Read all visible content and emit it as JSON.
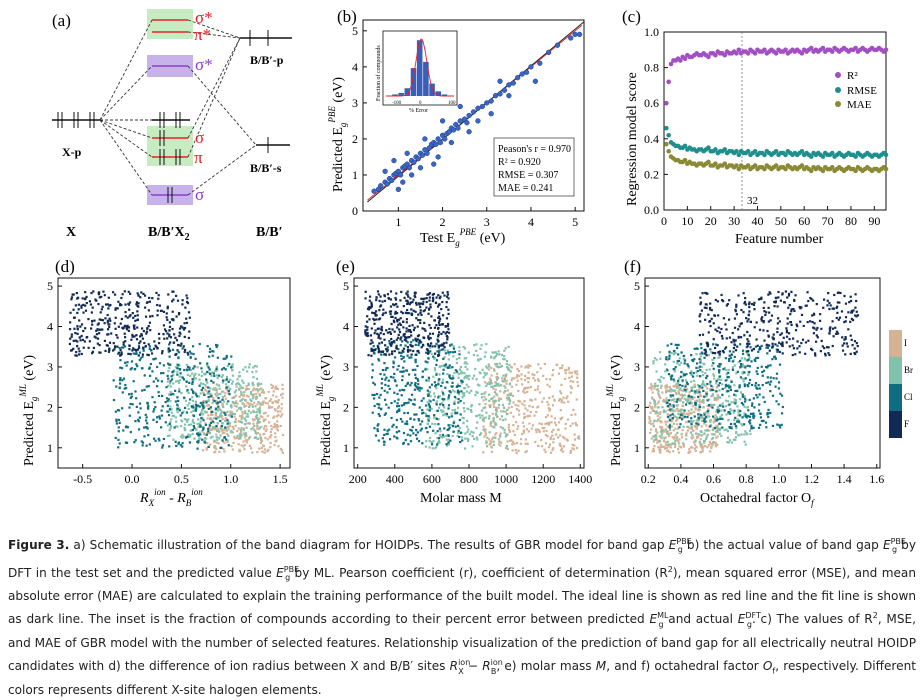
{
  "panels": {
    "a": {
      "label": "(a)",
      "col_x": "X",
      "col_mid": "B/B′X",
      "col_mid_sub": "2",
      "col_right": "B/B′",
      "left_level": "X-p",
      "right_top_level": "B/B′-p",
      "right_bottom_level": "B/B′-s",
      "sigma_star": "σ*",
      "pi_star": "π*",
      "sigma_star2": "σ*",
      "sigma": "σ",
      "pi": "π",
      "sigma_bottom": "σ",
      "colors": {
        "red": "#e8202a",
        "purple": "#8a3fd0",
        "green_box": "#c8ecc2",
        "purple_box": "#c7b2ea"
      }
    },
    "b": {
      "label": "(b)",
      "inset_ylabel": "Fraction of compounds",
      "inset_xlabel": "% Error",
      "stats": [
        "Peason's r = 0.970",
        "R² = 0.920",
        "RMSE = 0.307",
        "MAE = 0.241"
      ],
      "xlabel_main": "Test E",
      "xlabel_unit": " (eV)",
      "ylabel_main": "Predicted E",
      "ylabel_unit": " (eV)",
      "sup": "PBE",
      "sub": "g"
    },
    "c": {
      "label": "(c)",
      "ylabel": "Regression model score",
      "xlabel": "Feature number",
      "marker_label": "32",
      "legend": [
        "R²",
        "RMSE",
        "MAE"
      ]
    },
    "d": {
      "label": "(d)",
      "xlabel": "R",
      "xlabel_sub1": "X",
      "xlabel_sup1": "ion",
      "xlabel_mid": " - R",
      "xlabel_sub2": "B",
      "xlabel_sup2": "ion"
    },
    "e": {
      "label": "(e)",
      "xlabel": "Molar mass M"
    },
    "f": {
      "label": "(f)",
      "xlabel": "Octahedral factor O",
      "xlabel_sub": "f"
    },
    "scatter_ylabel": "Predicted E",
    "scatter_ylabel_sup": "ML",
    "scatter_ylabel_sub": "g",
    "scatter_ylabel_unit": " (eV)",
    "halogen_legend": [
      "I",
      "Br",
      "Cl",
      "F"
    ]
  },
  "colors": {
    "series_blue": "#3a66c4",
    "r2": "#a24fc4",
    "rmse": "#1e8f8c",
    "mae": "#8a8a35",
    "F": "#102a55",
    "Cl": "#0e6d80",
    "Br": "#82c2aa",
    "I": "#d5b294"
  },
  "chart_data": [
    {
      "type": "scatter",
      "panel": "b",
      "xlabel": "Test E_g^PBE (eV)",
      "ylabel": "Predicted E_g^PBE (eV)",
      "xlim": [
        0.2,
        5.2
      ],
      "ylim": [
        0,
        5.3
      ],
      "xticks": [
        1,
        2,
        3,
        4,
        5
      ],
      "yticks": [
        0,
        1,
        2,
        3,
        4,
        5
      ],
      "lines": [
        "ideal (red)",
        "fit (dark)"
      ],
      "x": [
        0.45,
        0.55,
        0.6,
        0.7,
        0.75,
        0.8,
        0.85,
        0.9,
        0.95,
        1.0,
        1.05,
        1.1,
        1.15,
        1.2,
        1.25,
        1.3,
        1.35,
        1.4,
        1.45,
        1.5,
        1.55,
        1.6,
        1.65,
        1.7,
        1.75,
        1.8,
        1.85,
        1.9,
        1.95,
        2.0,
        2.05,
        2.1,
        2.15,
        2.2,
        2.25,
        2.3,
        2.35,
        2.4,
        2.5,
        2.55,
        2.6,
        2.7,
        2.8,
        2.9,
        3.0,
        3.1,
        3.2,
        3.3,
        3.4,
        3.5,
        3.6,
        3.7,
        3.8,
        3.9,
        4.0,
        4.2,
        4.4,
        4.6,
        4.9,
        5.0,
        5.1,
        0.9,
        1.1,
        1.3,
        1.6,
        1.9,
        2.2,
        2.6,
        3.1,
        3.5,
        4.1,
        1.2,
        0.7,
        1.5,
        2.0,
        2.8,
        3.3,
        1.0,
        1.8,
        2.4
      ],
      "y": [
        0.55,
        0.6,
        0.7,
        0.8,
        0.75,
        0.9,
        0.85,
        1.0,
        1.05,
        1.1,
        1.0,
        1.2,
        1.25,
        1.3,
        1.2,
        1.4,
        1.35,
        1.5,
        1.45,
        1.6,
        1.55,
        1.7,
        1.6,
        1.75,
        1.85,
        1.9,
        1.85,
        2.0,
        1.9,
        2.1,
        2.0,
        2.15,
        2.2,
        2.3,
        2.25,
        2.4,
        2.3,
        2.5,
        2.55,
        2.45,
        2.65,
        2.75,
        2.85,
        2.9,
        3.0,
        3.05,
        3.2,
        3.25,
        3.35,
        3.5,
        3.55,
        3.7,
        3.8,
        3.85,
        4.0,
        4.1,
        4.4,
        4.6,
        4.8,
        4.9,
        4.9,
        1.4,
        0.8,
        1.0,
        2.0,
        1.5,
        1.9,
        2.2,
        2.7,
        3.2,
        3.6,
        1.6,
        1.1,
        1.2,
        2.5,
        2.5,
        3.6,
        0.6,
        1.3,
        2.9
      ]
    },
    {
      "type": "bar",
      "panel": "b-inset",
      "xlabel": "% Error",
      "ylabel": "Fraction of compounds",
      "categories": [
        "-100",
        "-80",
        "-60",
        "-40",
        "-20",
        "0",
        "20",
        "40",
        "60",
        "80",
        "100"
      ],
      "values": [
        0.0,
        0.01,
        0.02,
        0.05,
        0.18,
        0.36,
        0.22,
        0.08,
        0.03,
        0.01,
        0.0
      ]
    },
    {
      "type": "scatter",
      "panel": "c",
      "xlabel": "Feature number",
      "ylabel": "Regression model score",
      "xlim": [
        0,
        95
      ],
      "ylim": [
        0.0,
        1.0
      ],
      "xticks": [
        0,
        10,
        20,
        30,
        40,
        50,
        60,
        70,
        80,
        90
      ],
      "yticks": [
        0.0,
        0.2,
        0.4,
        0.6,
        0.8,
        1.0
      ],
      "series": [
        {
          "name": "R²",
          "values": [
            0.6,
            0.72,
            0.82,
            0.84,
            0.84,
            0.85,
            0.84,
            0.86,
            0.85,
            0.87,
            0.86,
            0.86,
            0.87,
            0.88,
            0.87,
            0.87,
            0.88,
            0.87,
            0.86,
            0.88,
            0.88,
            0.87,
            0.89,
            0.88,
            0.88,
            0.87,
            0.89,
            0.88,
            0.88,
            0.89,
            0.88,
            0.9,
            0.88,
            0.89,
            0.89,
            0.88,
            0.9,
            0.89,
            0.88,
            0.9,
            0.89,
            0.89,
            0.9,
            0.88,
            0.89,
            0.9,
            0.89,
            0.88,
            0.9,
            0.89,
            0.89,
            0.9,
            0.88,
            0.89,
            0.9,
            0.89,
            0.9,
            0.89,
            0.88,
            0.9,
            0.89,
            0.9,
            0.91,
            0.89,
            0.9,
            0.89,
            0.9,
            0.91,
            0.89,
            0.9,
            0.9,
            0.89,
            0.91,
            0.9,
            0.89,
            0.9,
            0.91,
            0.9,
            0.89,
            0.9,
            0.9,
            0.91,
            0.89,
            0.9,
            0.91,
            0.9,
            0.89,
            0.9,
            0.91,
            0.9,
            0.9,
            0.91,
            0.9,
            0.89,
            0.9
          ]
        },
        {
          "name": "RMSE",
          "values": [
            0.46,
            0.42,
            0.38,
            0.37,
            0.36,
            0.36,
            0.35,
            0.35,
            0.36,
            0.34,
            0.35,
            0.34,
            0.34,
            0.33,
            0.34,
            0.34,
            0.33,
            0.34,
            0.35,
            0.33,
            0.33,
            0.34,
            0.32,
            0.33,
            0.33,
            0.34,
            0.32,
            0.33,
            0.33,
            0.32,
            0.33,
            0.31,
            0.33,
            0.32,
            0.32,
            0.33,
            0.31,
            0.32,
            0.33,
            0.31,
            0.32,
            0.32,
            0.31,
            0.33,
            0.32,
            0.31,
            0.32,
            0.33,
            0.31,
            0.32,
            0.32,
            0.31,
            0.33,
            0.32,
            0.31,
            0.32,
            0.31,
            0.32,
            0.33,
            0.31,
            0.32,
            0.31,
            0.3,
            0.32,
            0.31,
            0.32,
            0.31,
            0.3,
            0.32,
            0.31,
            0.31,
            0.32,
            0.3,
            0.31,
            0.32,
            0.31,
            0.3,
            0.31,
            0.32,
            0.31,
            0.31,
            0.3,
            0.32,
            0.31,
            0.3,
            0.31,
            0.32,
            0.31,
            0.3,
            0.31,
            0.31,
            0.3,
            0.31,
            0.32,
            0.31
          ]
        },
        {
          "name": "MAE",
          "values": [
            0.37,
            0.33,
            0.3,
            0.29,
            0.28,
            0.28,
            0.27,
            0.27,
            0.28,
            0.26,
            0.27,
            0.26,
            0.26,
            0.25,
            0.26,
            0.26,
            0.25,
            0.26,
            0.27,
            0.25,
            0.25,
            0.26,
            0.24,
            0.25,
            0.25,
            0.26,
            0.24,
            0.25,
            0.25,
            0.24,
            0.25,
            0.23,
            0.25,
            0.24,
            0.24,
            0.25,
            0.23,
            0.24,
            0.25,
            0.23,
            0.24,
            0.24,
            0.23,
            0.25,
            0.24,
            0.23,
            0.24,
            0.25,
            0.23,
            0.24,
            0.24,
            0.23,
            0.25,
            0.24,
            0.23,
            0.24,
            0.23,
            0.24,
            0.25,
            0.23,
            0.24,
            0.23,
            0.22,
            0.24,
            0.23,
            0.24,
            0.23,
            0.22,
            0.24,
            0.23,
            0.23,
            0.24,
            0.22,
            0.23,
            0.24,
            0.23,
            0.22,
            0.23,
            0.24,
            0.23,
            0.23,
            0.22,
            0.24,
            0.23,
            0.22,
            0.23,
            0.24,
            0.23,
            0.22,
            0.23,
            0.23,
            0.22,
            0.23,
            0.24,
            0.23
          ]
        }
      ],
      "marker_x": 32
    },
    {
      "type": "scatter",
      "panel": "d",
      "xlim": [
        -0.75,
        1.6
      ],
      "ylim": [
        0.5,
        5.2
      ],
      "xticks": [
        -0.5,
        0.0,
        0.5,
        1.0,
        1.5
      ],
      "yticks": [
        1,
        2,
        3,
        4,
        5
      ],
      "series": [
        {
          "name": "F",
          "x_range": [
            -0.65,
            0.58
          ],
          "y_range": [
            3.3,
            4.9
          ]
        },
        {
          "name": "Cl",
          "x_range": [
            -0.2,
            1.0
          ],
          "y_range": [
            1.0,
            3.6
          ]
        },
        {
          "name": "Br",
          "x_range": [
            0.35,
            1.3
          ],
          "y_range": [
            1.2,
            3.1
          ]
        },
        {
          "name": "I",
          "x_range": [
            0.7,
            1.52
          ],
          "y_range": [
            0.9,
            2.6
          ]
        }
      ]
    },
    {
      "type": "scatter",
      "panel": "e",
      "xlim": [
        180,
        1420
      ],
      "ylim": [
        0.5,
        5.2
      ],
      "xticks": [
        200,
        400,
        600,
        800,
        1000,
        1200,
        1400
      ],
      "yticks": [
        1,
        2,
        3,
        4,
        5
      ],
      "series": [
        {
          "name": "F",
          "x_range": [
            230,
            690
          ],
          "y_range": [
            3.3,
            4.9
          ]
        },
        {
          "name": "Cl",
          "x_range": [
            270,
            760
          ],
          "y_range": [
            1.1,
            3.7
          ]
        },
        {
          "name": "Br",
          "x_range": [
            560,
            1020
          ],
          "y_range": [
            1.0,
            3.6
          ]
        },
        {
          "name": "I",
          "x_range": [
            870,
            1390
          ],
          "y_range": [
            0.9,
            3.1
          ]
        }
      ]
    },
    {
      "type": "scatter",
      "panel": "f",
      "xlim": [
        0.18,
        1.62
      ],
      "ylim": [
        0.5,
        5.2
      ],
      "xticks": [
        0.2,
        0.4,
        0.6,
        0.8,
        1.0,
        1.2,
        1.4,
        1.6
      ],
      "yticks": [
        1,
        2,
        3,
        4,
        5
      ],
      "series": [
        {
          "name": "F",
          "x_range": [
            0.5,
            1.48
          ],
          "y_range": [
            3.3,
            4.9
          ]
        },
        {
          "name": "Cl",
          "x_range": [
            0.3,
            1.02
          ],
          "y_range": [
            1.5,
            3.6
          ]
        },
        {
          "name": "Br",
          "x_range": [
            0.22,
            0.82
          ],
          "y_range": [
            1.1,
            3.4
          ]
        },
        {
          "name": "I",
          "x_range": [
            0.2,
            0.62
          ],
          "y_range": [
            0.9,
            2.6
          ]
        }
      ]
    }
  ],
  "caption": {
    "label": "Figure 3.",
    "parts": [
      "a) Schematic illustration of the band diagram for HOIDPs. The results of GBR model for band gap ",
      "E",
      "PBE",
      "g",
      " b) the actual value of band gap ",
      "E",
      "PBE",
      "g",
      " by DFT in the test set and the predicted value ",
      "E",
      "PBE",
      "g",
      " by ML. Pearson coefficient (r), coefficient of determination (R",
      "2",
      "), mean squared error (MSE), and mean absolute error (MAE) are calculated to explain the training performance of the built model. The ideal line is shown as red line and the fit line is shown as dark line. The inset is the fraction of compounds according to their percent error between predicted ",
      "E",
      "ML",
      "g",
      " and actual ",
      "E",
      "DFT",
      "g",
      ". c) The values of R",
      "2",
      ", MSE, and MAE of GBR model with the number of selected features. Relationship visualization of the prediction of band gap for all electrically neutral HOIDP candidates with d) the difference of ion radius between X and B/B′ sites ",
      "R",
      "ion",
      "X",
      " − ",
      "R",
      "ion",
      "B",
      ", e) molar mass ",
      "M",
      ", and f) octahedral factor ",
      "O",
      "f",
      ", respectively. Different colors represents different X-site halogen elements."
    ]
  }
}
